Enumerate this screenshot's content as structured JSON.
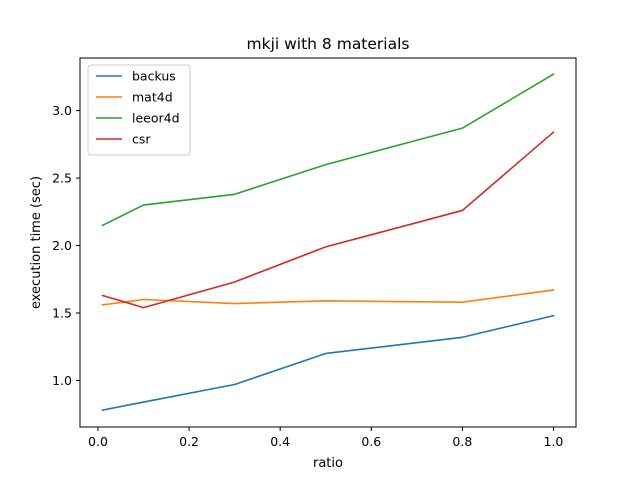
{
  "chart_data": {
    "type": "line",
    "title": "mkji with 8 materials",
    "xlabel": "ratio",
    "ylabel": "execution time (sec)",
    "x": [
      0.01,
      0.1,
      0.3,
      0.5,
      0.8,
      1.0
    ],
    "xlim": [
      -0.0395,
      1.0495
    ],
    "ylim": [
      0.655,
      3.39
    ],
    "xticks": [
      0.0,
      0.2,
      0.4,
      0.6,
      0.8,
      1.0
    ],
    "xtick_labels": [
      "0.0",
      "0.2",
      "0.4",
      "0.6",
      "0.8",
      "1.0"
    ],
    "yticks": [
      1.0,
      1.5,
      2.0,
      2.5,
      3.0
    ],
    "ytick_labels": [
      "1.0",
      "1.5",
      "2.0",
      "2.5",
      "3.0"
    ],
    "legend_position": "top-left",
    "grid": false,
    "series": [
      {
        "name": "backus",
        "color": "#1f77b4",
        "values": [
          0.78,
          0.84,
          0.97,
          1.2,
          1.32,
          1.48
        ]
      },
      {
        "name": "mat4d",
        "color": "#ff7f0e",
        "values": [
          1.56,
          1.6,
          1.57,
          1.59,
          1.58,
          1.67
        ]
      },
      {
        "name": "leeor4d",
        "color": "#2ca02c",
        "values": [
          2.15,
          2.3,
          2.38,
          2.6,
          2.87,
          3.27
        ]
      },
      {
        "name": "csr",
        "color": "#d62728",
        "values": [
          1.63,
          1.54,
          1.73,
          1.99,
          2.26,
          2.84
        ]
      }
    ]
  }
}
